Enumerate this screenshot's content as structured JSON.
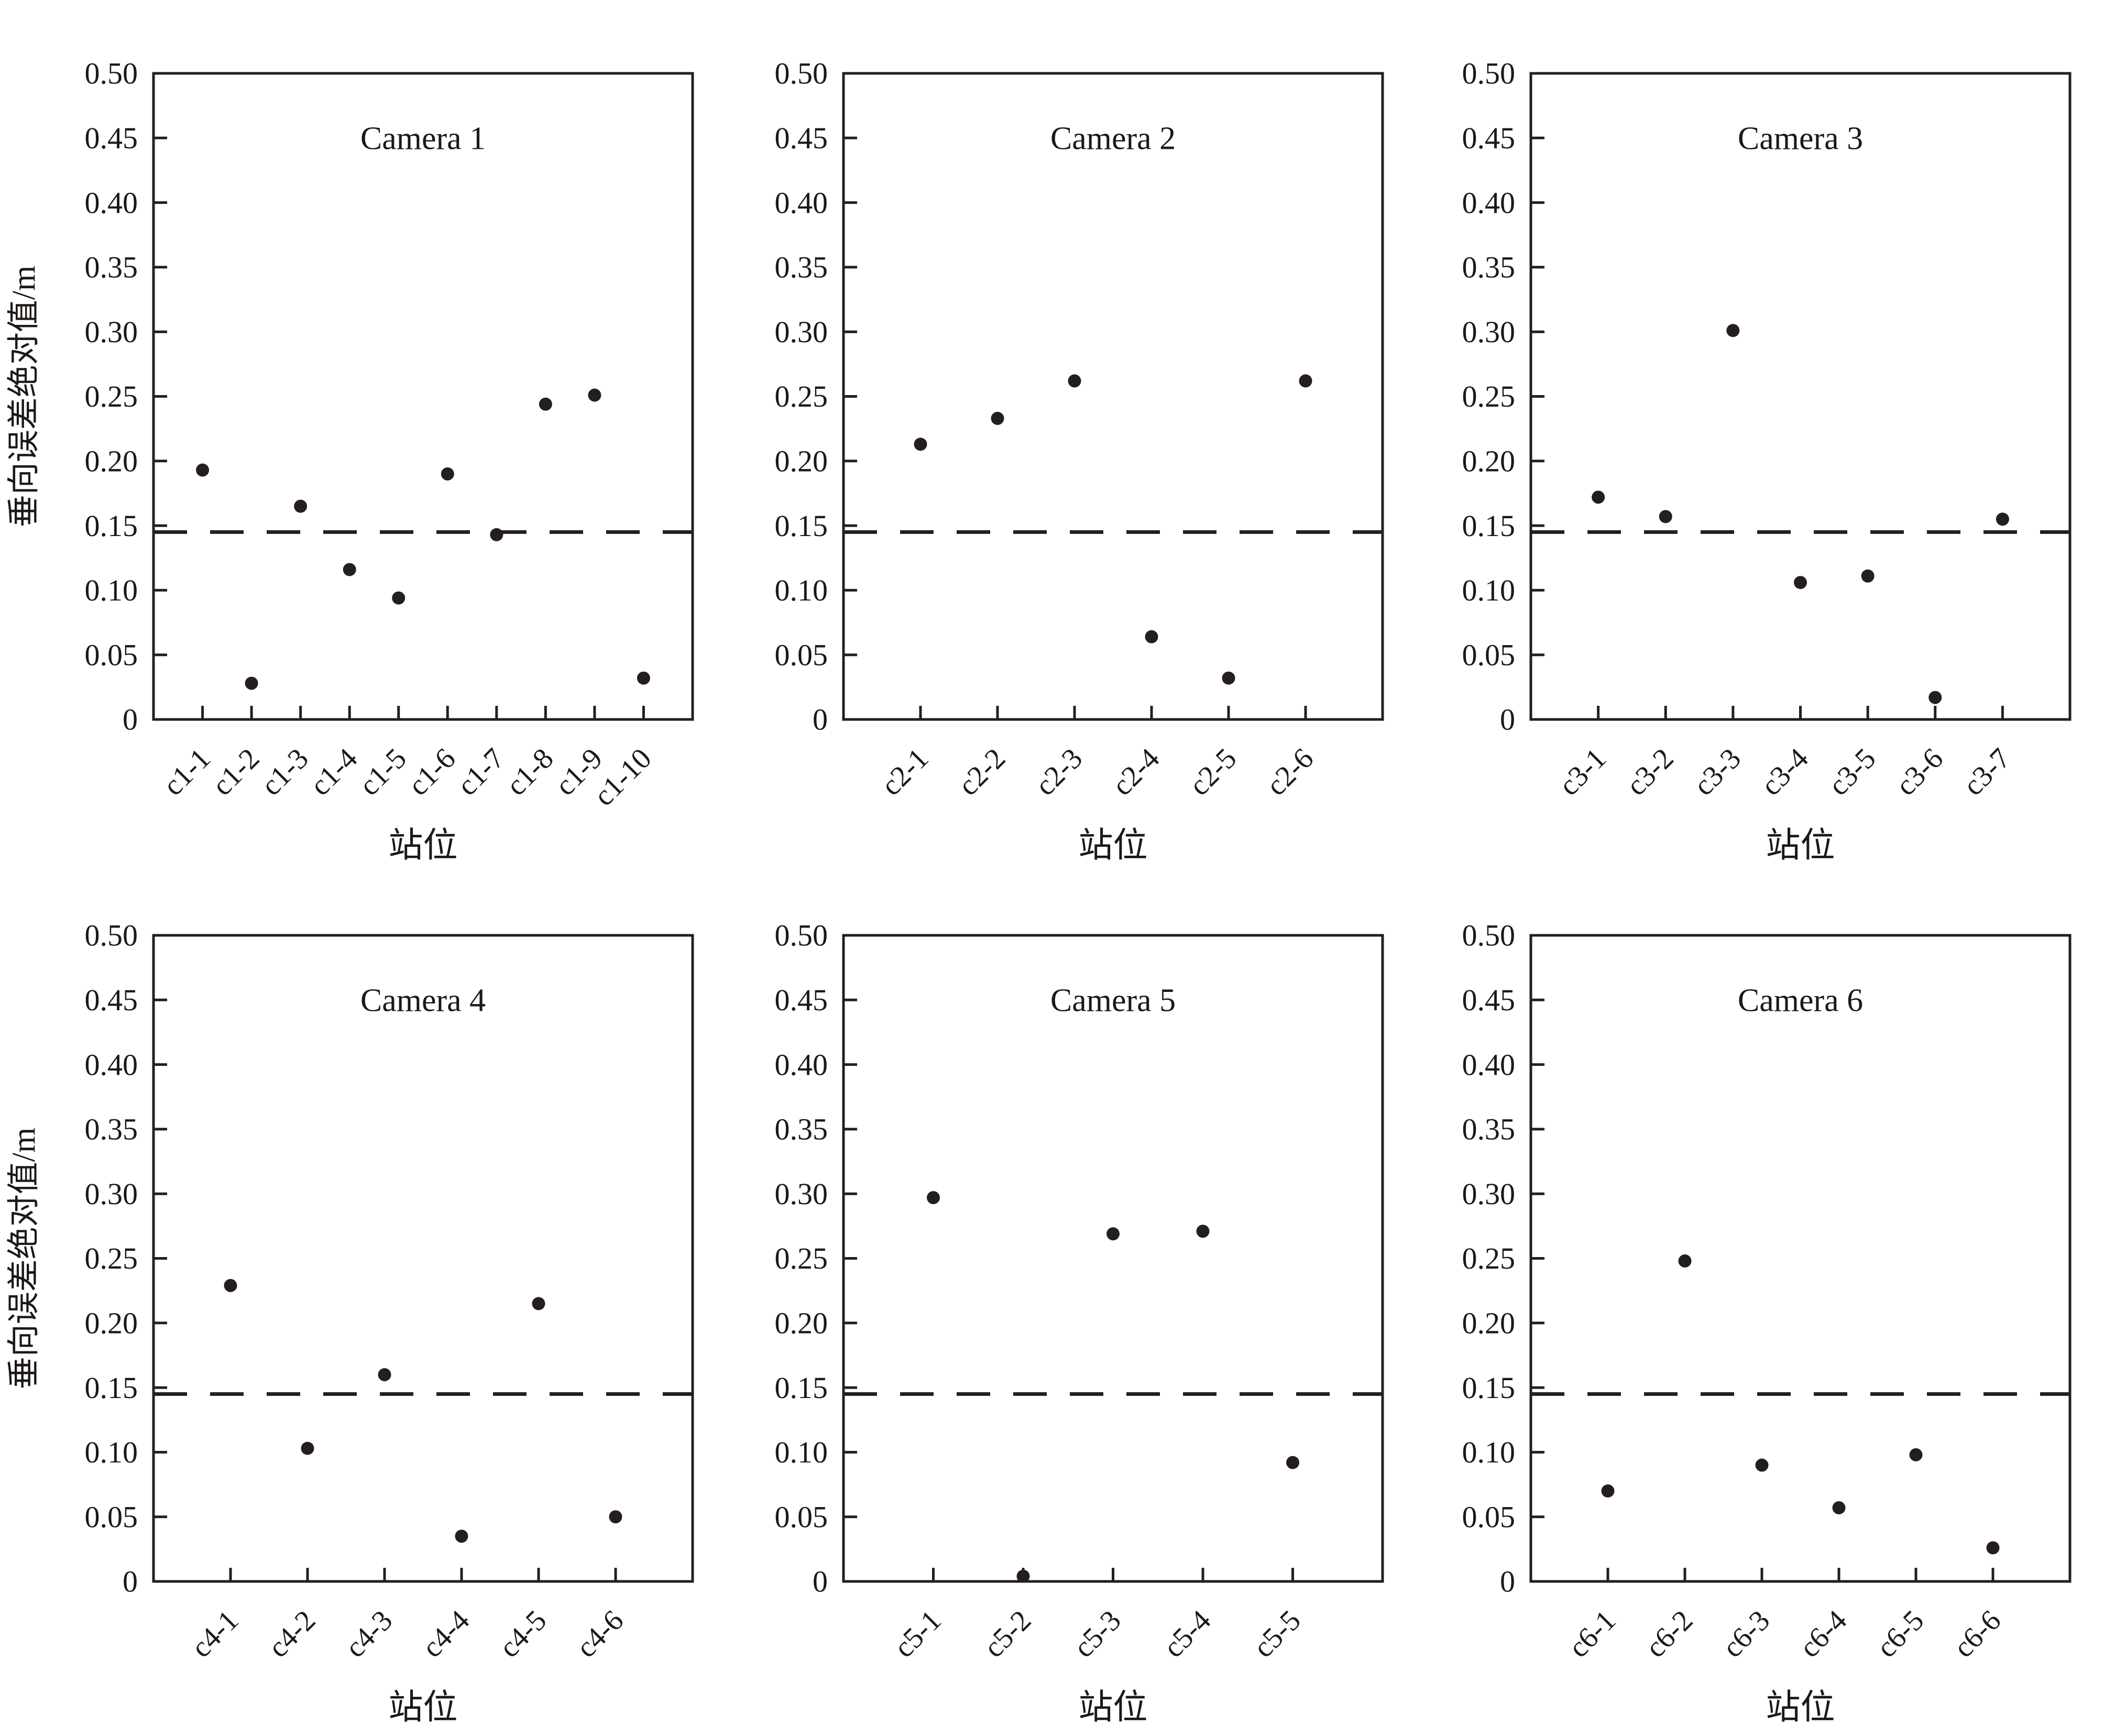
{
  "figure": {
    "background": "#ffffff",
    "ink_color": "#241f1d",
    "panel_grid": "2 rows x 3 columns"
  },
  "axes": {
    "ylabel": "垂向误差绝对值/m",
    "xlabel": "站位",
    "ylim": [
      0,
      0.5
    ],
    "y_tick_labels": [
      "0",
      "0.05",
      "0.10",
      "0.15",
      "0.20",
      "0.25",
      "0.30",
      "0.35",
      "0.40",
      "0.45",
      "0.50"
    ],
    "reference_line_value": 0.145,
    "reference_line_style": "dashed",
    "grid": "off",
    "legend": "none"
  },
  "chart_data": [
    {
      "type": "scatter",
      "title": "Camera 1",
      "xlabel": "站位",
      "ylabel": "垂向误差绝对值/m",
      "show_ylabel": true,
      "ylim": [
        0,
        0.5
      ],
      "reference_line": 0.145,
      "categories": [
        "c1-1",
        "c1-2",
        "c1-3",
        "c1-4",
        "c1-5",
        "c1-6",
        "c1-7",
        "c1-8",
        "c1-9",
        "c1-10"
      ],
      "values": [
        0.193,
        0.028,
        0.165,
        0.116,
        0.094,
        0.19,
        0.143,
        0.244,
        0.251,
        0.032
      ]
    },
    {
      "type": "scatter",
      "title": "Camera 2",
      "xlabel": "站位",
      "ylabel": "垂向误差绝对值/m",
      "show_ylabel": false,
      "ylim": [
        0,
        0.5
      ],
      "reference_line": 0.145,
      "categories": [
        "c2-1",
        "c2-2",
        "c2-3",
        "c2-4",
        "c2-5",
        "c2-6"
      ],
      "values": [
        0.213,
        0.233,
        0.262,
        0.064,
        0.032,
        0.262
      ]
    },
    {
      "type": "scatter",
      "title": "Camera 3",
      "xlabel": "站位",
      "ylabel": "垂向误差绝对值/m",
      "show_ylabel": false,
      "ylim": [
        0,
        0.5
      ],
      "reference_line": 0.145,
      "categories": [
        "c3-1",
        "c3-2",
        "c3-3",
        "c3-4",
        "c3-5",
        "c3-6",
        "c3-7"
      ],
      "values": [
        0.172,
        0.157,
        0.301,
        0.106,
        0.111,
        0.017,
        0.155
      ]
    },
    {
      "type": "scatter",
      "title": "Camera 4",
      "xlabel": "站位",
      "ylabel": "垂向误差绝对值/m",
      "show_ylabel": true,
      "ylim": [
        0,
        0.5
      ],
      "reference_line": 0.145,
      "categories": [
        "c4-1",
        "c4-2",
        "c4-3",
        "c4-4",
        "c4-5",
        "c4-6"
      ],
      "values": [
        0.229,
        0.103,
        0.16,
        0.035,
        0.215,
        0.05
      ]
    },
    {
      "type": "scatter",
      "title": "Camera 5",
      "xlabel": "站位",
      "ylabel": "垂向误差绝对值/m",
      "show_ylabel": false,
      "ylim": [
        0,
        0.5
      ],
      "reference_line": 0.145,
      "categories": [
        "c5-1",
        "c5-2",
        "c5-3",
        "c5-4",
        "c5-5"
      ],
      "values": [
        0.297,
        0.004,
        0.269,
        0.271,
        0.092
      ]
    },
    {
      "type": "scatter",
      "title": "Camera 6",
      "xlabel": "站位",
      "ylabel": "垂向误差绝对值/m",
      "show_ylabel": false,
      "ylim": [
        0,
        0.5
      ],
      "reference_line": 0.145,
      "categories": [
        "c6-1",
        "c6-2",
        "c6-3",
        "c6-4",
        "c6-5",
        "c6-6"
      ],
      "values": [
        0.07,
        0.248,
        0.09,
        0.057,
        0.098,
        0.026
      ]
    }
  ]
}
